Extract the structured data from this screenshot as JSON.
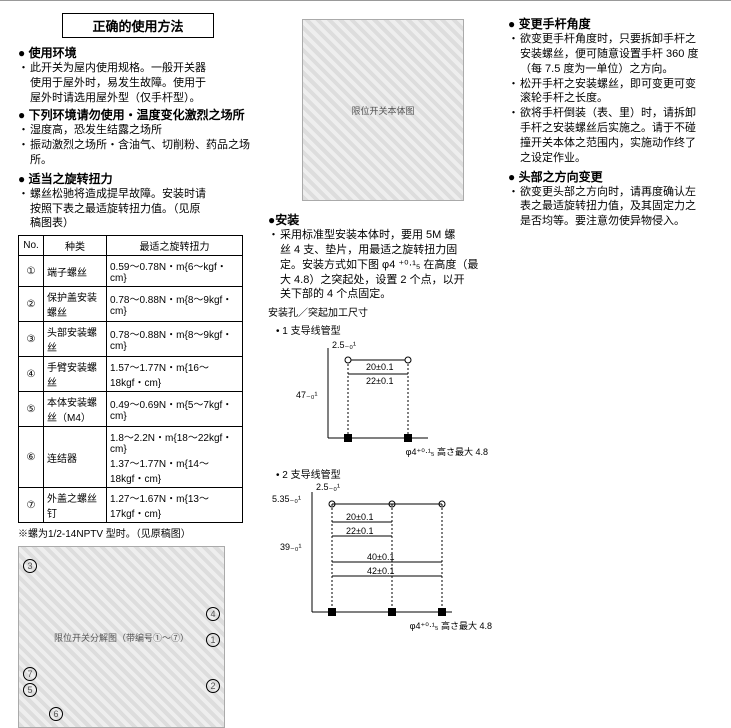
{
  "title": "正确的使用方法",
  "col1": {
    "h1": "使用环境",
    "b1_lines": [
      "此开关为屋内使用规格。一般开关器",
      "使用于屋外时，易发生故障。使用于",
      "屋外时请选用屋外型（仅手杆型）。"
    ],
    "h1b": "下列环境请勿使用・温度变化激烈之场所",
    "b2_lines": [
      "湿度高，恐发生结露之场所",
      "振动激烈之场所・含油气、切削粉、药品之场所。"
    ],
    "h2": "适当之旋转扭力",
    "b3_lines": [
      "螺丝松驰将造成提早故障。安装时请",
      "按照下表之最适旋转扭力值。（见原",
      "稿图表）"
    ],
    "table": {
      "headers": [
        "No.",
        "种类",
        "最适之旋转扭力"
      ],
      "rows": [
        [
          "①",
          "端子螺丝",
          "0.59～0.78N・m{6～kgf・cm}"
        ],
        [
          "②",
          "保护盖安装螺丝",
          "0.78～0.88N・m{8～9kgf・cm}"
        ],
        [
          "③",
          "头部安装螺丝",
          "0.78～0.88N・m{8～9kgf・cm}"
        ],
        [
          "④",
          "手臂安装螺丝",
          "1.57～1.77N・m{16～18kgf・cm}"
        ],
        [
          "⑤",
          "本体安装螺丝（M4）",
          "0.49～0.69N・m{5～7kgf・cm}"
        ],
        [
          "⑥",
          "连结器",
          "1.8～2.2N・m{18～22kgf・cm}\n1.37～1.77N・m{14～18kgf・cm}"
        ],
        [
          "⑦",
          "外盖之螺丝钉",
          "1.27～1.67N・m{13～17kgf・cm}"
        ]
      ],
      "note": "※螺为1/2-14NPTV 型时。（见原稿图）"
    },
    "fig1_caption": "限位开关分解图（带编号①～⑦）"
  },
  "col2": {
    "fig2_caption": "限位开关本体图",
    "h1": "安装",
    "b1_lines": [
      "采用标准型安装本体时，要用 5M 螺",
      "丝 4 支、垫片，用最适之旋转扭力固",
      "定。安装方式如下图 φ4 ⁺⁰·¹₅ 在高度（最",
      "大 4.8）之突起处，设置 2 个点，以开",
      "关下部的 4 个点固定。"
    ],
    "sub1": "安装孔／突起加工尺寸",
    "dim1_label": "• 1 支导线管型",
    "dim1": {
      "dims": [
        "2.5₋₀¹",
        "20±0.1",
        "22±0.1",
        "47₋₀¹"
      ],
      "note": "φ4⁺⁰·¹₅ 高さ最大 4.8"
    },
    "dim2_label": "• 2 支导线管型",
    "dim2": {
      "dims": [
        "2.5₋₀¹",
        "5.35₋₀¹",
        "20±0.1",
        "22±0.1",
        "39₋₀¹",
        "40±0.1",
        "42±0.1"
      ],
      "note": "φ4⁺⁰·¹₅ 高さ最大 4.8"
    }
  },
  "col3": {
    "h1": "变更手杆角度",
    "b1_lines": [
      "欲变更手杆角度时，只要拆卸手杆之",
      "安装螺丝，便可随意设置手杆 360 度",
      "（每 7.5 度为一单位）之方向。"
    ],
    "b2_lines": [
      "松开手杆之安装螺丝，即可变更可变",
      "滚轮手杆之长度。"
    ],
    "b3_lines": [
      "欲将手杆倒装（表、里）时，请拆卸",
      "手杆之安装螺丝后实施之。请于不碰",
      "撞开关本体之范围内，实施动作终了",
      "之设定作业。"
    ],
    "h2": "头部之方向变更",
    "b4_lines": [
      "欲变更头部之方向时，请再度确认左",
      "表之最适旋转扭力值，及其固定力之",
      "是否均等。要注意勿使异物侵入。"
    ]
  }
}
